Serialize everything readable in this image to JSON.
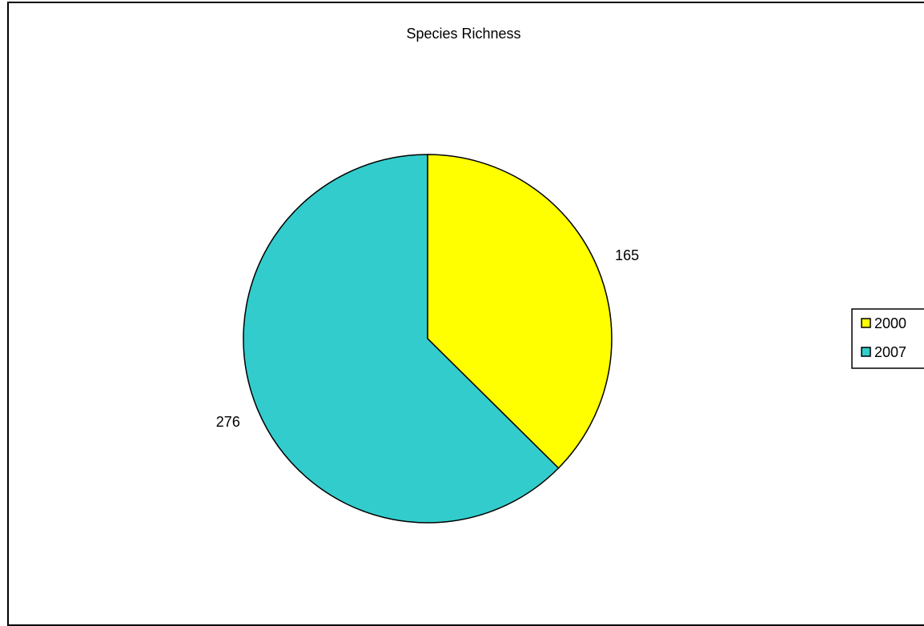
{
  "chart_data": {
    "type": "pie",
    "title": "Species Richness",
    "categories": [
      "2000",
      "2007"
    ],
    "values": [
      165,
      276
    ],
    "colors": [
      "#FFFF00",
      "#33CCCC"
    ],
    "start_angle_deg": 0,
    "direction": "clockwise",
    "data_labels": [
      "165",
      "276"
    ],
    "legend": {
      "position": "right",
      "entries": [
        "2000",
        "2007"
      ]
    }
  }
}
